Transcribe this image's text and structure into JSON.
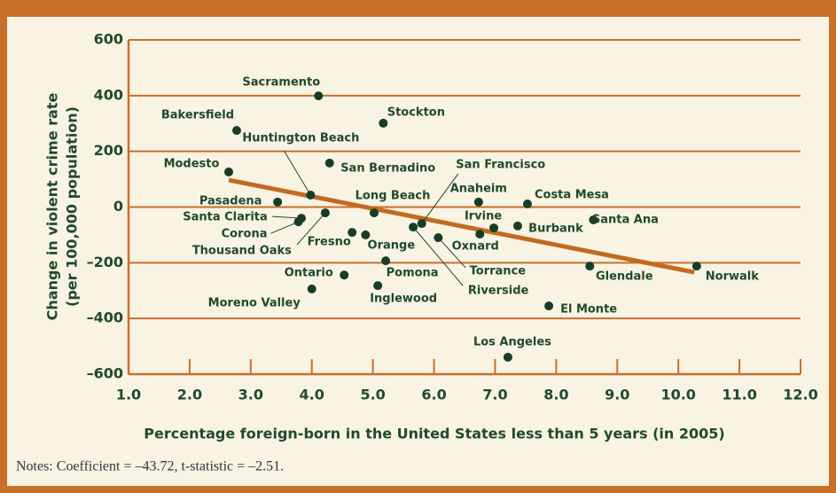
{
  "chart_data": {
    "type": "scatter",
    "xlabel": "Percentage foreign-born in the United States less than 5 years (in 2005)",
    "ylabel": [
      "Change in violent crime rate",
      "(per 100,000 population)"
    ],
    "notes": "Notes: Coefficient = –43.72, t-statistic = –2.51.",
    "xlim": [
      1.0,
      12.0
    ],
    "ylim": [
      -600,
      600
    ],
    "xticks": [
      {
        "value": 1,
        "label": "1.0"
      },
      {
        "value": 2,
        "label": "2.0"
      },
      {
        "value": 3,
        "label": "3.0"
      },
      {
        "value": 4,
        "label": "4.0"
      },
      {
        "value": 5,
        "label": "5.0"
      },
      {
        "value": 6,
        "label": "6.0"
      },
      {
        "value": 7,
        "label": "7.0"
      },
      {
        "value": 8,
        "label": "8.0"
      },
      {
        "value": 9,
        "label": "9.0"
      },
      {
        "value": 10,
        "label": "10.0"
      },
      {
        "value": 11,
        "label": "11.0"
      },
      {
        "value": 12,
        "label": "12.0"
      }
    ],
    "yticks": [
      {
        "value": -600,
        "label": "–600"
      },
      {
        "value": -400,
        "label": "–400"
      },
      {
        "value": -200,
        "label": "–200"
      },
      0,
      200,
      400,
      600
    ],
    "grid": true,
    "color": "#173d28",
    "point_labels": [
      "Sacramento",
      "Bakersfield",
      "Stockton",
      "Modesto",
      "Huntington Beach",
      "San Bernadino",
      "Pasadena",
      "Long Beach",
      "San Francisco",
      "Anaheim",
      "Costa Mesa",
      "Santa Clarita",
      "Corona",
      "Irvine",
      "Burbank",
      "Santa Ana",
      "Thousand Oaks",
      "Fresno",
      "Orange",
      "Oxnard",
      "Torrance",
      "Riverside",
      "Pomona",
      "Ontario",
      "Glendale",
      "Norwalk",
      "Moreno Valley",
      "Inglewood",
      "El Monte",
      "Los Angeles"
    ],
    "x": [
      4.11,
      2.77,
      5.17,
      2.64,
      3.98,
      4.29,
      3.44,
      5.02,
      5.8,
      6.73,
      7.53,
      3.83,
      3.78,
      6.98,
      7.37,
      8.61,
      4.22,
      4.66,
      4.88,
      6.75,
      6.07,
      5.66,
      5.21,
      4.53,
      8.55,
      10.3,
      4.0,
      5.08,
      7.88,
      7.21
    ],
    "y": [
      399,
      275,
      301,
      126,
      43,
      158,
      18,
      -21,
      -59,
      18,
      11,
      -40,
      -53,
      -75,
      -68,
      -46,
      -21,
      -91,
      -100,
      -97,
      -110,
      -72,
      -193,
      -244,
      -212,
      -212,
      -294,
      -282,
      -355,
      -539
    ],
    "trend_line": {
      "color": "#c26a1f",
      "x": [
        2.64,
        10.26
      ],
      "y": [
        97,
        -234
      ]
    }
  }
}
